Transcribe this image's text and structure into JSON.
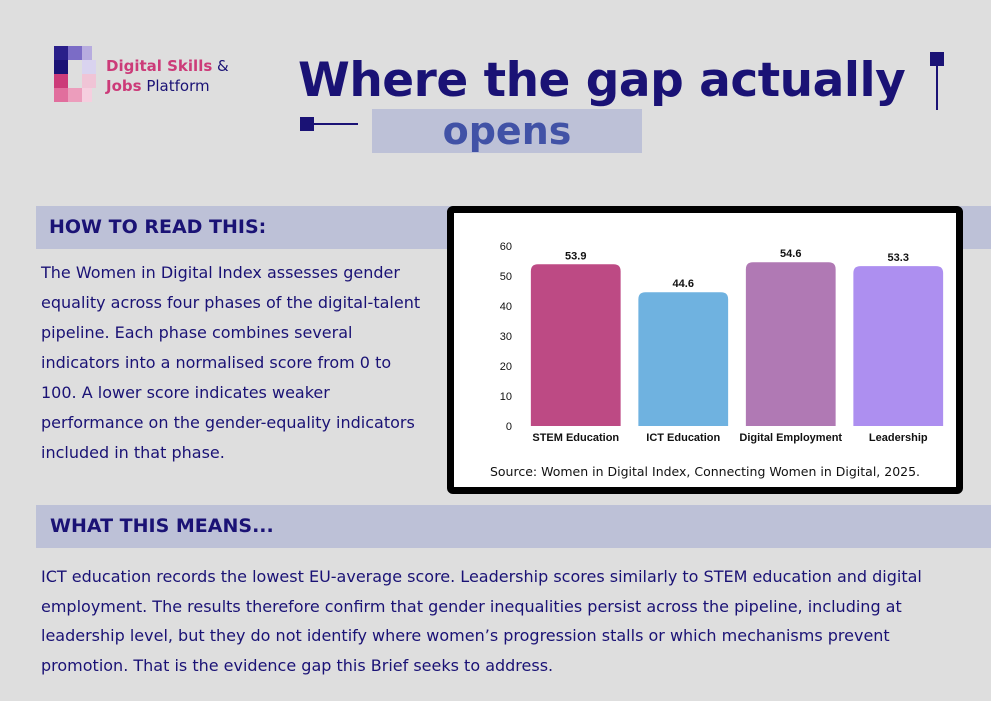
{
  "logo": {
    "line1": "Digital Skills",
    "amp": " &",
    "line2a": "Jobs",
    "line2b": " Platform"
  },
  "title": {
    "line1": "Where the gap actually",
    "line2": "opens"
  },
  "sections": {
    "how_to_read": {
      "heading": "HOW TO READ THIS:",
      "body": "The Women in Digital Index assesses gender equality across four phases of the digital-talent pipeline. Each phase combines several indicators into a normalised score from 0 to 100. A lower score indicates weaker performance on the gender-equality indicators included in that phase."
    },
    "what_this_means": {
      "heading": "WHAT THIS MEANS...",
      "body": "ICT education records the lowest EU-average score. Leadership scores similarly to STEM education and digital employment. The results therefore confirm that gender inequalities persist across the pipeline, including at leadership level, but they do not identify where women’s progression stalls or which mechanisms prevent promotion. That is the evidence gap this Brief seeks to address."
    }
  },
  "chart_data": {
    "type": "bar",
    "categories": [
      "STEM Education",
      "ICT Education",
      "Digital Employment",
      "Leadership"
    ],
    "values": [
      53.9,
      44.6,
      54.6,
      53.3
    ],
    "data_labels": [
      "53.9",
      "44.6",
      "54.6",
      "53.3"
    ],
    "colors": [
      "#bd4a84",
      "#6fb2e0",
      "#b079b4",
      "#ad8ff0"
    ],
    "ylim": [
      0,
      60
    ],
    "yticks": [
      0,
      10,
      20,
      30,
      40,
      50,
      60
    ],
    "grid": false,
    "title": "",
    "xlabel": "",
    "ylabel": "",
    "source": "Source: Women in Digital Index, Connecting Women in Digital, 2025."
  },
  "colors": {
    "navy": "#1a1275",
    "accent_pink": "#cc3b79",
    "accent_blue": "#4152a6",
    "band": "#bdc1d7",
    "background": "#dedede"
  }
}
